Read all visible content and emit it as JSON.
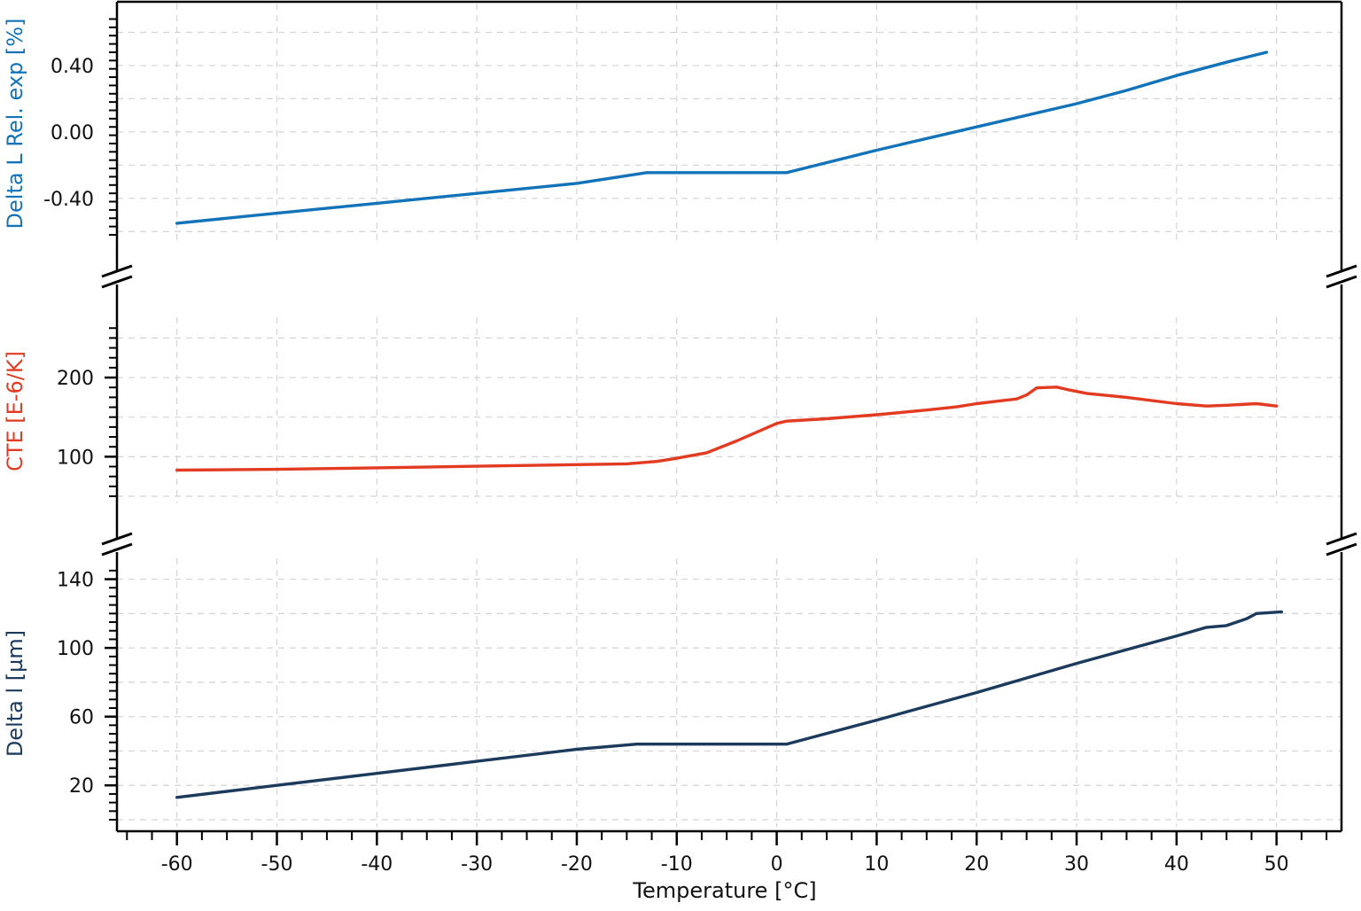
{
  "chart_data": {
    "type": "line",
    "xlabel": "Temperature [°C]",
    "xlim": [
      -66,
      56.5
    ],
    "x_ticks": [
      -60,
      -50,
      -40,
      -30,
      -20,
      -10,
      0,
      10,
      20,
      30,
      40,
      50
    ],
    "x_tick_labels": [
      "-60",
      "-50",
      "-40",
      "-30",
      "-20",
      "-10",
      "0",
      "10",
      "20",
      "30",
      "40",
      "50"
    ],
    "grid": true,
    "panels": [
      {
        "ylabel": "Delta L Rel. exp [%]",
        "color": "#1273b9",
        "ylim": [
          -0.62,
          0.72
        ],
        "y_ticks": [
          -0.4,
          0.0,
          0.4
        ],
        "y_tick_labels": [
          "-0.40",
          "0.00",
          "0.40"
        ],
        "x": [
          -60,
          -50,
          -40,
          -30,
          -20,
          -13,
          1,
          10,
          20,
          30,
          35,
          40,
          45,
          49
        ],
        "y": [
          -0.55,
          -0.49,
          -0.43,
          -0.37,
          -0.31,
          -0.245,
          -0.245,
          -0.11,
          0.03,
          0.17,
          0.25,
          0.34,
          0.42,
          0.48
        ]
      },
      {
        "ylabel": "CTE [E-6/K]",
        "color": "#e23b22",
        "ylim": [
          50,
          265
        ],
        "y_ticks": [
          100,
          200
        ],
        "y_tick_labels": [
          "100",
          "200"
        ],
        "x": [
          -60,
          -50,
          -40,
          -30,
          -20,
          -15,
          -12,
          -10,
          -7,
          -4,
          0,
          1,
          5,
          10,
          15,
          18,
          20,
          22,
          24,
          25,
          26,
          28,
          29,
          31,
          35,
          40,
          43,
          45,
          48,
          50
        ],
        "y": [
          83,
          84,
          86,
          88,
          90,
          91,
          94,
          98,
          105,
          120,
          142,
          145,
          148,
          153,
          159,
          163,
          167,
          170,
          173,
          178,
          187,
          188,
          185,
          180,
          175,
          167,
          164,
          165,
          167,
          164
        ]
      },
      {
        "ylabel": "Delta l [µm]",
        "color": "#1b3a5c",
        "ylim": [
          0,
          147
        ],
        "y_ticks": [
          20,
          60,
          100,
          140
        ],
        "y_tick_labels": [
          "20",
          "60",
          "100",
          "140"
        ],
        "x": [
          -60,
          -50,
          -40,
          -30,
          -20,
          -14,
          1,
          10,
          20,
          30,
          40,
          43,
          45,
          47,
          48,
          50.5
        ],
        "y": [
          13,
          20,
          27,
          34,
          41,
          44,
          44,
          58,
          74,
          91,
          107,
          112,
          113,
          117,
          120,
          121
        ]
      }
    ]
  }
}
